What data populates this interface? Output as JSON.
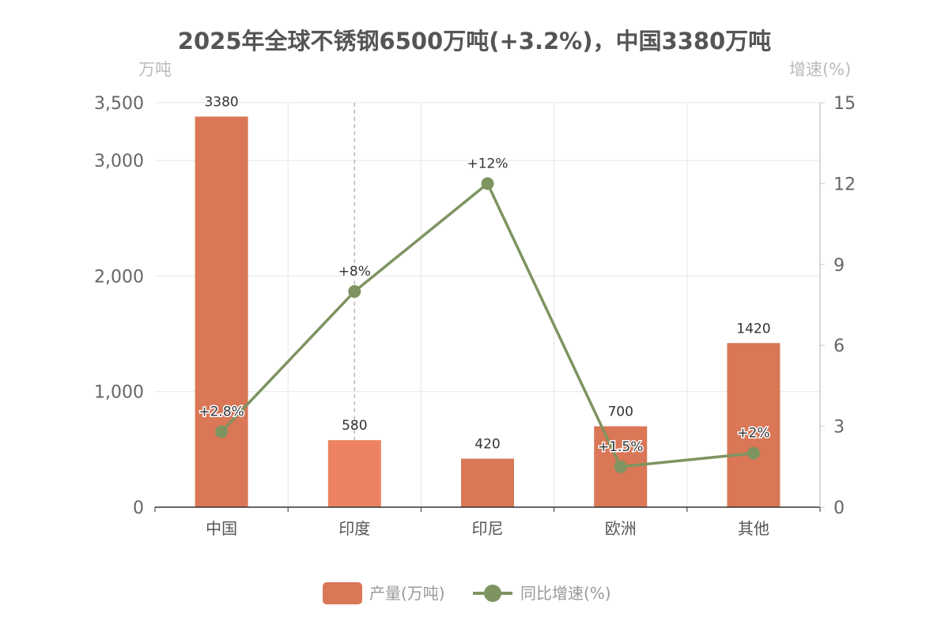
{
  "colors": {
    "bar": "#d97757",
    "bar_highlight": "#ec8260",
    "line": "#7d9460",
    "grid": "#e6e6e6",
    "axis": "#333333"
  },
  "chart_data": {
    "type": "bar",
    "title": "2025年全球不锈钢6500万吨(+3.2%)，中国3380万吨",
    "y_left_name": "万吨",
    "y_right_name": "增速(%)",
    "categories": [
      "中国",
      "印度",
      "印尼",
      "欧洲",
      "其他"
    ],
    "y_left_ticks": [
      "0",
      "1,000",
      "2,000",
      "3,000",
      "3,500"
    ],
    "y_left_tick_values": [
      0,
      1000,
      2000,
      3000,
      3500
    ],
    "y_right_ticks": [
      "0",
      "3",
      "6",
      "9",
      "12",
      "15"
    ],
    "y_right_tick_values": [
      0,
      3,
      6,
      9,
      12,
      15
    ],
    "ylim_left": [
      0,
      3500
    ],
    "ylim_right": [
      0,
      15
    ],
    "grid": true,
    "legend_position": "bottom",
    "highlighted_category": "印度",
    "series": [
      {
        "name": "产量(万吨)",
        "type": "bar",
        "axis": "left",
        "values": [
          3380,
          580,
          420,
          700,
          1420
        ],
        "labels": [
          "3380",
          "580",
          "420",
          "700",
          "1420"
        ]
      },
      {
        "name": "同比增速(%)",
        "type": "line",
        "axis": "right",
        "values": [
          2.8,
          8,
          12,
          1.5,
          2
        ],
        "labels": [
          "+2.8%",
          "+8%",
          "+12%",
          "+1.5%",
          "+2%"
        ]
      }
    ]
  }
}
